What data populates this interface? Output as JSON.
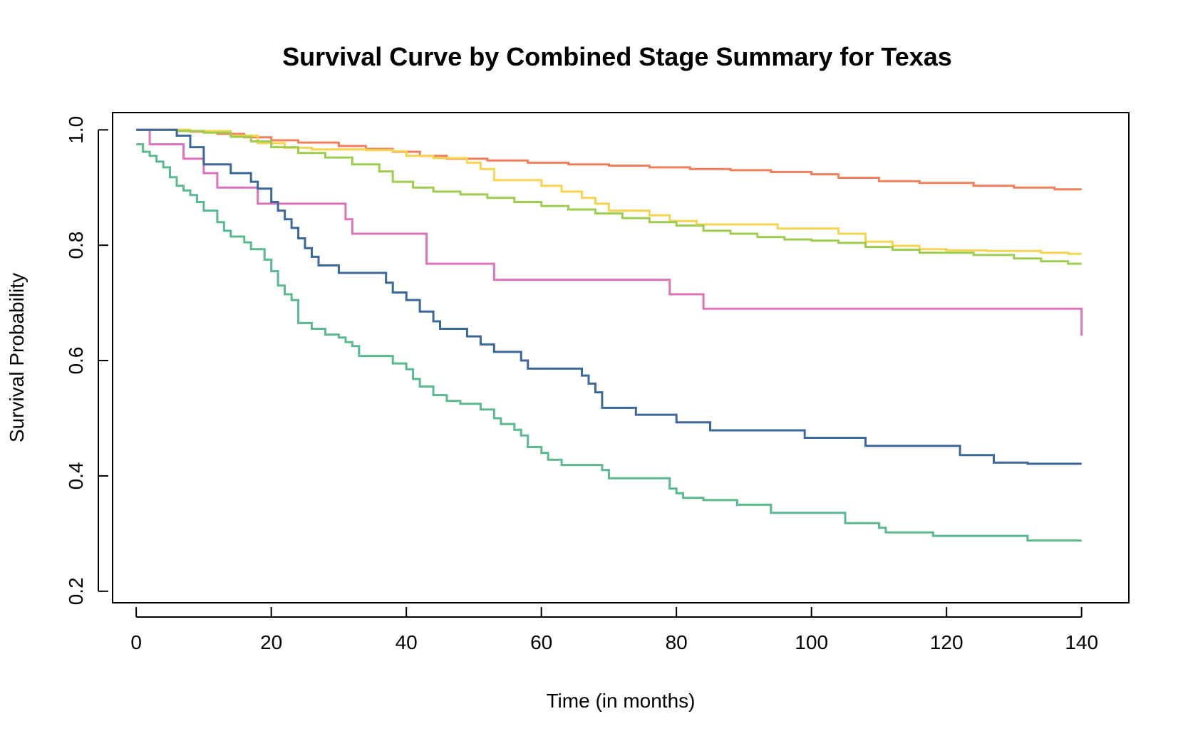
{
  "chart_data": {
    "type": "line",
    "step": true,
    "title": "Survival Curve by Combined Stage Summary for Texas",
    "xlabel": "Time (in months)",
    "ylabel": "Survival Probability",
    "xlim": [
      -3.5,
      147
    ],
    "ylim": [
      0.18,
      1.03
    ],
    "xticks": [
      0,
      20,
      40,
      60,
      80,
      100,
      120,
      140
    ],
    "yticks": [
      0.2,
      0.4,
      0.6,
      0.8,
      1.0
    ],
    "xtick_labels": [
      "0",
      "20",
      "40",
      "60",
      "80",
      "100",
      "120",
      "140"
    ],
    "ytick_labels": [
      "0.2",
      "0.4",
      "0.6",
      "0.8",
      "1.0"
    ],
    "grid": false,
    "legend": "none",
    "series": [
      {
        "color": "#F07F5A",
        "points": [
          [
            0,
            1.0
          ],
          [
            8,
            0.997
          ],
          [
            12,
            0.993
          ],
          [
            16,
            0.987
          ],
          [
            20,
            0.982
          ],
          [
            24,
            0.978
          ],
          [
            30,
            0.972
          ],
          [
            34,
            0.967
          ],
          [
            38,
            0.962
          ],
          [
            42,
            0.955
          ],
          [
            46,
            0.95
          ],
          [
            52,
            0.947
          ],
          [
            58,
            0.943
          ],
          [
            64,
            0.94
          ],
          [
            70,
            0.938
          ],
          [
            76,
            0.935
          ],
          [
            82,
            0.932
          ],
          [
            88,
            0.93
          ],
          [
            94,
            0.927
          ],
          [
            100,
            0.923
          ],
          [
            104,
            0.917
          ],
          [
            110,
            0.911
          ],
          [
            116,
            0.908
          ],
          [
            124,
            0.903
          ],
          [
            130,
            0.9
          ],
          [
            136,
            0.897
          ],
          [
            140,
            0.897
          ]
        ]
      },
      {
        "color": "#F5D44F",
        "points": [
          [
            0,
            1.0
          ],
          [
            8,
            0.998
          ],
          [
            14,
            0.99
          ],
          [
            18,
            0.977
          ],
          [
            22,
            0.969
          ],
          [
            26,
            0.966
          ],
          [
            34,
            0.965
          ],
          [
            38,
            0.963
          ],
          [
            40,
            0.955
          ],
          [
            44,
            0.951
          ],
          [
            49,
            0.943
          ],
          [
            51,
            0.932
          ],
          [
            53,
            0.913
          ],
          [
            56,
            0.913
          ],
          [
            60,
            0.903
          ],
          [
            63,
            0.893
          ],
          [
            66,
            0.882
          ],
          [
            68,
            0.872
          ],
          [
            70,
            0.86
          ],
          [
            76,
            0.852
          ],
          [
            79,
            0.842
          ],
          [
            83,
            0.836
          ],
          [
            95,
            0.829
          ],
          [
            104,
            0.82
          ],
          [
            108,
            0.806
          ],
          [
            112,
            0.799
          ],
          [
            116,
            0.793
          ],
          [
            120,
            0.791
          ],
          [
            126,
            0.79
          ],
          [
            134,
            0.787
          ],
          [
            138,
            0.785
          ],
          [
            140,
            0.785
          ]
        ]
      },
      {
        "color": "#9DCC4E",
        "points": [
          [
            0,
            1.0
          ],
          [
            6,
            0.998
          ],
          [
            10,
            0.995
          ],
          [
            14,
            0.988
          ],
          [
            17,
            0.98
          ],
          [
            20,
            0.97
          ],
          [
            24,
            0.96
          ],
          [
            28,
            0.952
          ],
          [
            32,
            0.94
          ],
          [
            36,
            0.928
          ],
          [
            38,
            0.91
          ],
          [
            41,
            0.9
          ],
          [
            44,
            0.893
          ],
          [
            48,
            0.888
          ],
          [
            52,
            0.882
          ],
          [
            56,
            0.875
          ],
          [
            60,
            0.868
          ],
          [
            64,
            0.862
          ],
          [
            68,
            0.855
          ],
          [
            72,
            0.847
          ],
          [
            76,
            0.84
          ],
          [
            80,
            0.834
          ],
          [
            84,
            0.825
          ],
          [
            88,
            0.82
          ],
          [
            92,
            0.814
          ],
          [
            96,
            0.81
          ],
          [
            100,
            0.808
          ],
          [
            104,
            0.804
          ],
          [
            108,
            0.797
          ],
          [
            112,
            0.792
          ],
          [
            116,
            0.787
          ],
          [
            124,
            0.783
          ],
          [
            130,
            0.777
          ],
          [
            134,
            0.772
          ],
          [
            138,
            0.768
          ],
          [
            140,
            0.768
          ]
        ]
      },
      {
        "color": "#DE72B8",
        "points": [
          [
            0,
            1.0
          ],
          [
            2,
            0.975
          ],
          [
            7,
            0.95
          ],
          [
            10,
            0.925
          ],
          [
            12,
            0.9
          ],
          [
            18,
            0.872
          ],
          [
            31,
            0.845
          ],
          [
            32,
            0.82
          ],
          [
            43,
            0.768
          ],
          [
            53,
            0.74
          ],
          [
            79,
            0.715
          ],
          [
            84,
            0.69
          ],
          [
            140,
            0.69
          ],
          [
            140,
            0.643
          ]
        ]
      },
      {
        "color": "#3C6799",
        "points": [
          [
            0,
            1.0
          ],
          [
            6,
            0.99
          ],
          [
            8,
            0.97
          ],
          [
            10,
            0.94
          ],
          [
            14,
            0.925
          ],
          [
            17,
            0.91
          ],
          [
            18,
            0.898
          ],
          [
            20,
            0.875
          ],
          [
            21,
            0.86
          ],
          [
            22,
            0.845
          ],
          [
            23,
            0.83
          ],
          [
            24,
            0.812
          ],
          [
            25,
            0.795
          ],
          [
            26,
            0.78
          ],
          [
            27,
            0.765
          ],
          [
            30,
            0.752
          ],
          [
            37,
            0.735
          ],
          [
            38,
            0.718
          ],
          [
            40,
            0.705
          ],
          [
            42,
            0.685
          ],
          [
            44,
            0.668
          ],
          [
            45,
            0.655
          ],
          [
            49,
            0.642
          ],
          [
            51,
            0.628
          ],
          [
            53,
            0.615
          ],
          [
            57,
            0.6
          ],
          [
            58,
            0.586
          ],
          [
            66,
            0.574
          ],
          [
            67,
            0.56
          ],
          [
            68,
            0.545
          ],
          [
            69,
            0.518
          ],
          [
            74,
            0.506
          ],
          [
            80,
            0.493
          ],
          [
            85,
            0.479
          ],
          [
            99,
            0.466
          ],
          [
            108,
            0.452
          ],
          [
            122,
            0.436
          ],
          [
            127,
            0.423
          ],
          [
            132,
            0.421
          ],
          [
            140,
            0.421
          ]
        ]
      },
      {
        "color": "#5BB88F",
        "points": [
          [
            0,
            0.975
          ],
          [
            1,
            0.962
          ],
          [
            2,
            0.955
          ],
          [
            3,
            0.945
          ],
          [
            4,
            0.935
          ],
          [
            5,
            0.918
          ],
          [
            6,
            0.903
          ],
          [
            7,
            0.895
          ],
          [
            8,
            0.887
          ],
          [
            9,
            0.875
          ],
          [
            10,
            0.86
          ],
          [
            12,
            0.84
          ],
          [
            13,
            0.825
          ],
          [
            14,
            0.815
          ],
          [
            16,
            0.805
          ],
          [
            17,
            0.793
          ],
          [
            19,
            0.775
          ],
          [
            20,
            0.755
          ],
          [
            21,
            0.73
          ],
          [
            22,
            0.715
          ],
          [
            23,
            0.705
          ],
          [
            24,
            0.665
          ],
          [
            26,
            0.655
          ],
          [
            28,
            0.645
          ],
          [
            30,
            0.64
          ],
          [
            31,
            0.632
          ],
          [
            32,
            0.625
          ],
          [
            33,
            0.608
          ],
          [
            38,
            0.595
          ],
          [
            40,
            0.585
          ],
          [
            41,
            0.568
          ],
          [
            42,
            0.555
          ],
          [
            44,
            0.54
          ],
          [
            46,
            0.53
          ],
          [
            48,
            0.525
          ],
          [
            51,
            0.515
          ],
          [
            53,
            0.5
          ],
          [
            54,
            0.49
          ],
          [
            56,
            0.48
          ],
          [
            57,
            0.47
          ],
          [
            58,
            0.45
          ],
          [
            60,
            0.44
          ],
          [
            61,
            0.428
          ],
          [
            63,
            0.419
          ],
          [
            69,
            0.41
          ],
          [
            70,
            0.396
          ],
          [
            79,
            0.378
          ],
          [
            80,
            0.37
          ],
          [
            81,
            0.362
          ],
          [
            84,
            0.358
          ],
          [
            89,
            0.35
          ],
          [
            94,
            0.336
          ],
          [
            105,
            0.318
          ],
          [
            110,
            0.31
          ],
          [
            111,
            0.302
          ],
          [
            118,
            0.296
          ],
          [
            132,
            0.288
          ],
          [
            140,
            0.288
          ]
        ]
      }
    ]
  }
}
